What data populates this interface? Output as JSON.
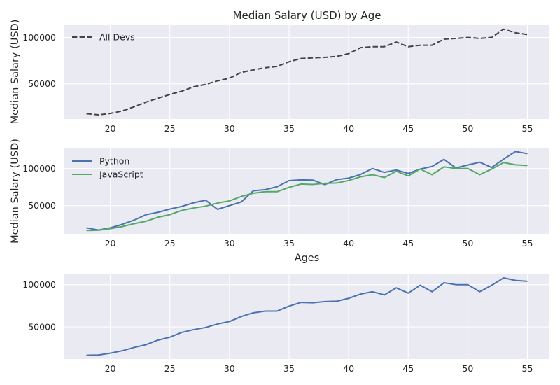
{
  "chart_data": [
    {
      "type": "line",
      "title": "Median Salary (USD) by Age",
      "xlabel": "",
      "ylabel": "Median Salary (USD)",
      "xlim": [
        16.15,
        56.85
      ],
      "ylim": [
        12000,
        114000
      ],
      "xticks": [
        "20",
        "25",
        "30",
        "35",
        "40",
        "45",
        "50",
        "55"
      ],
      "yticks": [
        "50000",
        "100000"
      ],
      "legend": "top-left",
      "grid": true,
      "x": [
        18,
        19,
        20,
        21,
        22,
        23,
        24,
        25,
        26,
        27,
        28,
        29,
        30,
        31,
        32,
        33,
        34,
        35,
        36,
        37,
        38,
        39,
        40,
        41,
        42,
        43,
        44,
        45,
        46,
        47,
        48,
        49,
        50,
        51,
        52,
        53,
        54,
        55
      ],
      "series": [
        {
          "name": "All Devs",
          "color": "#444444",
          "linestyle": "dashed",
          "values": [
            17784,
            16500,
            18012,
            20628,
            25206,
            30252,
            34368,
            38496,
            42000,
            46752,
            49320,
            53200,
            56000,
            62316,
            64928,
            67317,
            68748,
            73752,
            77232,
            78000,
            78508,
            79536,
            82488,
            88935,
            90000,
            90056,
            95000,
            90000,
            91633,
            91660,
            98150,
            98964,
            100000,
            98988,
            100000,
            108923,
            105000,
            103117
          ]
        }
      ]
    },
    {
      "type": "line",
      "title": "",
      "xlabel": "Ages",
      "ylabel": "Median Salary (USD)",
      "xlim": [
        16.15,
        56.85
      ],
      "ylim": [
        12000,
        127000
      ],
      "xticks": [
        "20",
        "25",
        "30",
        "35",
        "40",
        "45",
        "50",
        "55"
      ],
      "yticks": [
        "50000",
        "100000"
      ],
      "legend": "top-left",
      "grid": true,
      "x": [
        18,
        19,
        20,
        21,
        22,
        23,
        24,
        25,
        26,
        27,
        28,
        29,
        30,
        31,
        32,
        33,
        34,
        35,
        36,
        37,
        38,
        39,
        40,
        41,
        42,
        43,
        44,
        45,
        46,
        47,
        48,
        49,
        50,
        51,
        52,
        53,
        54,
        55
      ],
      "series": [
        {
          "name": "Python",
          "color": "#4c72b0",
          "linestyle": "solid",
          "values": [
            20046,
            17100,
            20000,
            24744,
            30500,
            37732,
            41000,
            45372,
            48876,
            53850,
            57287,
            45000,
            50000,
            55000,
            70000,
            71496,
            75370,
            83640,
            84666,
            84392,
            78254,
            85000,
            87038,
            91991,
            100000,
            94796,
            97962,
            93302,
            99240,
            102736,
            112285,
            100771,
            104708,
            108423,
            101407,
            112542,
            122870,
            120000
          ]
        },
        {
          "name": "JavaScript",
          "color": "#55a868",
          "linestyle": "solid",
          "values": [
            16446,
            16791,
            18942,
            21780,
            25704,
            29000,
            34372,
            37810,
            43515,
            46823,
            49293,
            53437,
            56373,
            62375,
            66674,
            68745,
            68746,
            74583,
            79000,
            78508,
            79996,
            80403,
            83820,
            88833,
            91660,
            87892,
            96243,
            90000,
            99313,
            91660,
            102264,
            100000,
            100000,
            91660,
            99240,
            108000,
            105000,
            104000
          ]
        }
      ]
    },
    {
      "type": "line",
      "title": "",
      "xlabel": "",
      "ylabel": "",
      "xlim": [
        16.15,
        56.85
      ],
      "ylim": [
        12000,
        113000
      ],
      "xticks": [
        "20",
        "25",
        "30",
        "35",
        "40",
        "45",
        "50",
        "55"
      ],
      "yticks": [
        "50000",
        "100000"
      ],
      "legend": "none",
      "grid": true,
      "x": [
        18,
        19,
        20,
        21,
        22,
        23,
        24,
        25,
        26,
        27,
        28,
        29,
        30,
        31,
        32,
        33,
        34,
        35,
        36,
        37,
        38,
        39,
        40,
        41,
        42,
        43,
        44,
        45,
        46,
        47,
        48,
        49,
        50,
        51,
        52,
        53,
        54,
        55
      ],
      "series": [
        {
          "color": "#4c72b0",
          "linestyle": "solid",
          "values": [
            16446,
            16791,
            18942,
            21780,
            25704,
            29000,
            34372,
            37810,
            43515,
            46823,
            49293,
            53437,
            56373,
            62375,
            66674,
            68745,
            68746,
            74583,
            79000,
            78508,
            79996,
            80403,
            83820,
            88833,
            91660,
            87892,
            96243,
            90000,
            99313,
            91660,
            102264,
            100000,
            100000,
            91660,
            99240,
            108000,
            105000,
            104000
          ]
        }
      ]
    }
  ]
}
